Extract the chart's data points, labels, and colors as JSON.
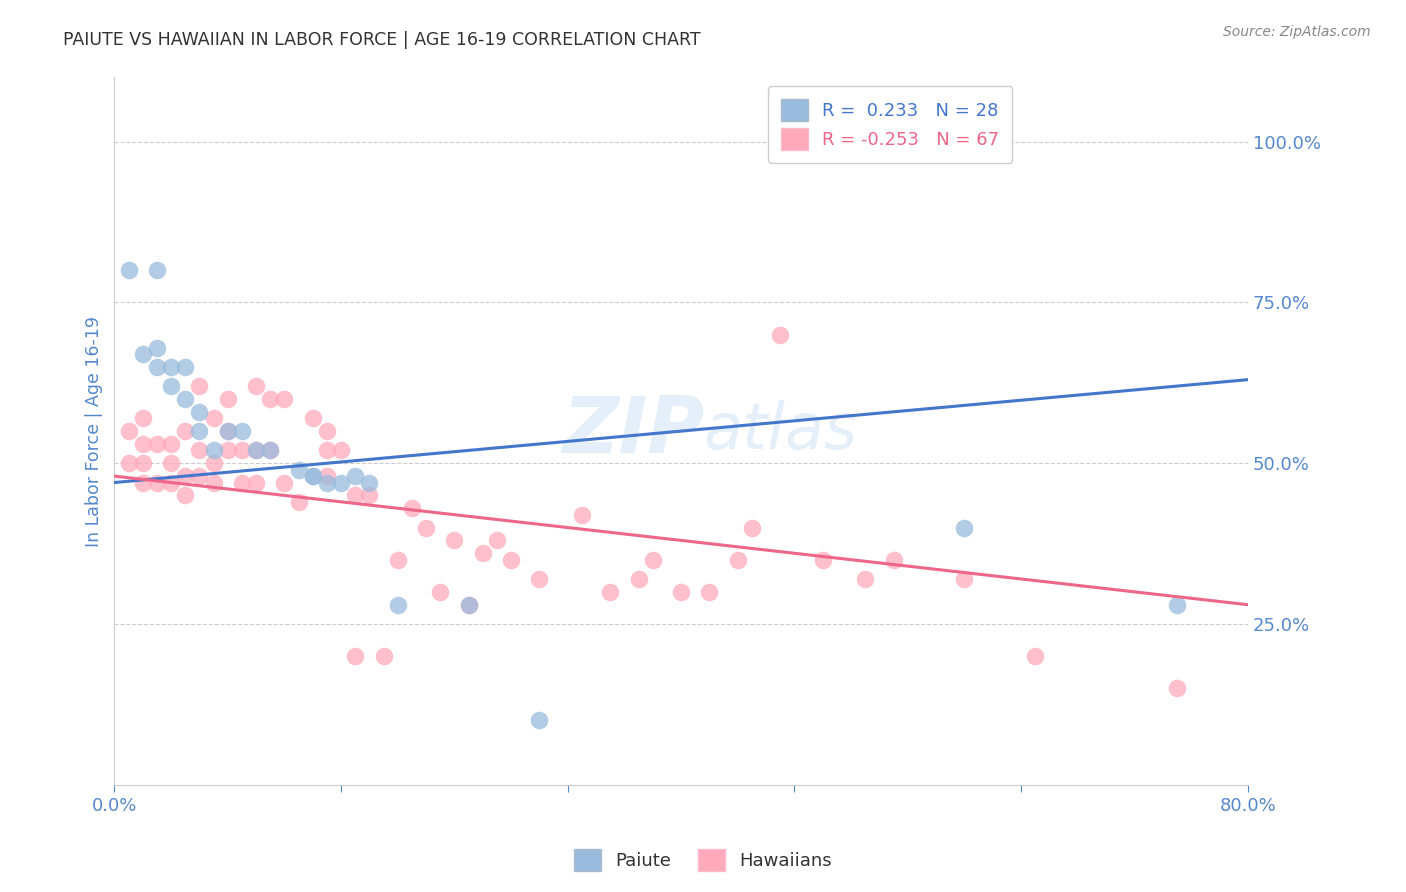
{
  "title": "PAIUTE VS HAWAIIAN IN LABOR FORCE | AGE 16-19 CORRELATION CHART",
  "source": "Source: ZipAtlas.com",
  "ylabel": "In Labor Force | Age 16-19",
  "ytick_labels": [
    "25.0%",
    "50.0%",
    "75.0%",
    "100.0%"
  ],
  "ytick_values": [
    0.25,
    0.5,
    0.75,
    1.0
  ],
  "xlim": [
    0.0,
    0.8
  ],
  "ylim": [
    0.0,
    1.1
  ],
  "watermark": "ZIPatlas",
  "legend_paiute": "R =  0.233   N = 28",
  "legend_hawaiian": "R = -0.253   N = 67",
  "paiute_color": "#99bbdd",
  "hawaiian_color": "#ffaabb",
  "paiute_line_color": "#4477cc",
  "hawaiian_line_color": "#ee6688",
  "paiute_points_x": [
    0.01,
    0.02,
    0.03,
    0.03,
    0.03,
    0.04,
    0.04,
    0.05,
    0.05,
    0.06,
    0.06,
    0.07,
    0.08,
    0.09,
    0.1,
    0.11,
    0.13,
    0.14,
    0.14,
    0.15,
    0.16,
    0.17,
    0.18,
    0.2,
    0.25,
    0.3,
    0.6,
    0.75
  ],
  "paiute_points_y": [
    0.8,
    0.67,
    0.65,
    0.68,
    0.8,
    0.62,
    0.65,
    0.6,
    0.65,
    0.55,
    0.58,
    0.52,
    0.55,
    0.55,
    0.52,
    0.52,
    0.49,
    0.48,
    0.48,
    0.47,
    0.47,
    0.48,
    0.47,
    0.28,
    0.28,
    0.1,
    0.4,
    0.28
  ],
  "hawaiian_points_x": [
    0.01,
    0.01,
    0.02,
    0.02,
    0.02,
    0.02,
    0.03,
    0.03,
    0.04,
    0.04,
    0.04,
    0.05,
    0.05,
    0.05,
    0.06,
    0.06,
    0.06,
    0.07,
    0.07,
    0.07,
    0.08,
    0.08,
    0.08,
    0.09,
    0.09,
    0.1,
    0.1,
    0.1,
    0.11,
    0.11,
    0.12,
    0.12,
    0.13,
    0.14,
    0.15,
    0.15,
    0.15,
    0.16,
    0.17,
    0.17,
    0.18,
    0.19,
    0.2,
    0.21,
    0.22,
    0.23,
    0.24,
    0.25,
    0.26,
    0.27,
    0.28,
    0.3,
    0.33,
    0.35,
    0.37,
    0.38,
    0.4,
    0.42,
    0.44,
    0.45,
    0.47,
    0.5,
    0.53,
    0.55,
    0.6,
    0.65,
    0.75
  ],
  "hawaiian_points_y": [
    0.5,
    0.55,
    0.47,
    0.5,
    0.53,
    0.57,
    0.47,
    0.53,
    0.47,
    0.5,
    0.53,
    0.45,
    0.48,
    0.55,
    0.48,
    0.52,
    0.62,
    0.47,
    0.5,
    0.57,
    0.52,
    0.55,
    0.6,
    0.47,
    0.52,
    0.47,
    0.52,
    0.62,
    0.52,
    0.6,
    0.47,
    0.6,
    0.44,
    0.57,
    0.48,
    0.52,
    0.55,
    0.52,
    0.2,
    0.45,
    0.45,
    0.2,
    0.35,
    0.43,
    0.4,
    0.3,
    0.38,
    0.28,
    0.36,
    0.38,
    0.35,
    0.32,
    0.42,
    0.3,
    0.32,
    0.35,
    0.3,
    0.3,
    0.35,
    0.4,
    0.7,
    0.35,
    0.32,
    0.35,
    0.32,
    0.2,
    0.15
  ],
  "paiute_line_x": [
    0.0,
    0.8
  ],
  "paiute_line_y": [
    0.47,
    0.63
  ],
  "hawaiian_line_x": [
    0.0,
    0.8
  ],
  "hawaiian_line_y": [
    0.48,
    0.28
  ],
  "grid_color": "#cccccc",
  "background_color": "#ffffff",
  "title_color": "#333333",
  "tick_color": "#5588cc"
}
